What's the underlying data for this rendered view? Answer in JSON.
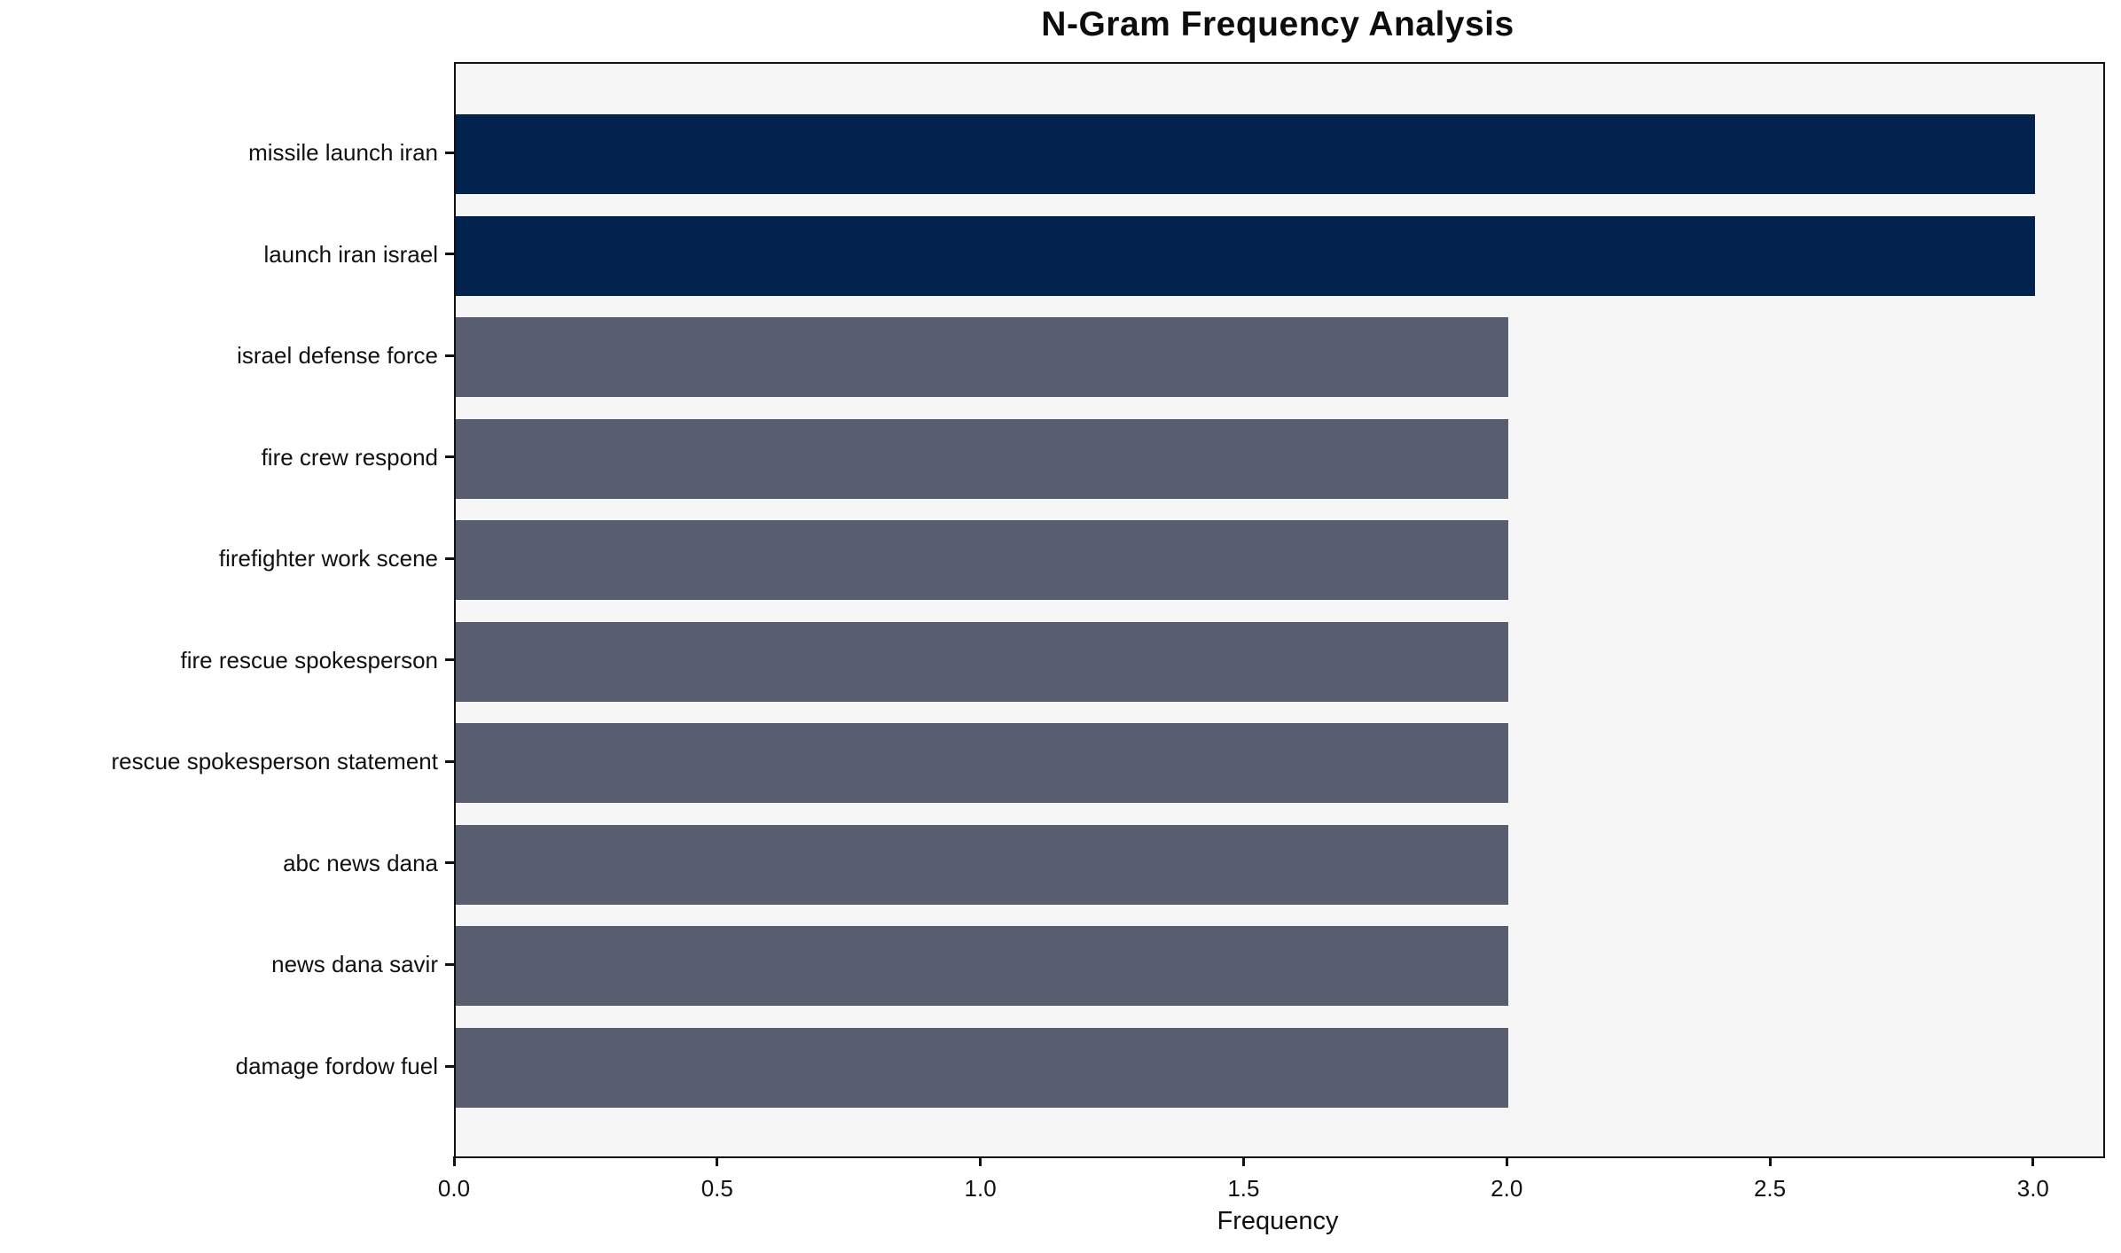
{
  "chart_data": {
    "type": "bar",
    "orientation": "horizontal",
    "title": "N-Gram Frequency Analysis",
    "xlabel": "Frequency",
    "ylabel": "",
    "categories": [
      "missile launch iran",
      "launch iran israel",
      "israel defense force",
      "fire crew respond",
      "firefighter work scene",
      "fire rescue spokesperson",
      "rescue spokesperson statement",
      "abc news dana",
      "news dana savir",
      "damage fordow fuel"
    ],
    "values": [
      3,
      3,
      2,
      2,
      2,
      2,
      2,
      2,
      2,
      2
    ],
    "bar_colors": [
      "#01234E",
      "#01234E",
      "#585E70",
      "#585E70",
      "#585E70",
      "#585E70",
      "#585E70",
      "#585E70",
      "#585E70",
      "#585E70"
    ],
    "xticks": [
      "0.0",
      "0.5",
      "1.0",
      "1.5",
      "2.0",
      "2.5",
      "3.0"
    ],
    "xtick_values": [
      0,
      0.5,
      1.0,
      1.5,
      2.0,
      2.5,
      3.0
    ],
    "xlim": [
      0,
      3.13
    ],
    "grid": false,
    "legend": null,
    "plot_background": "#F6F6F7",
    "figure_background": "#FFFFFF",
    "axis_color": "#111111"
  }
}
